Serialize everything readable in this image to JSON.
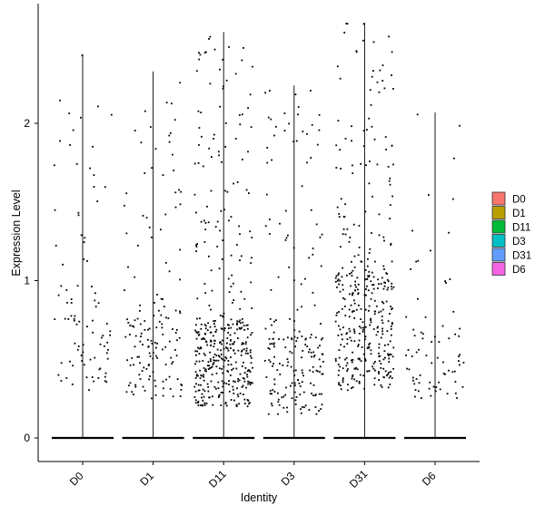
{
  "chart_data": {
    "type": "violin-jitter",
    "title": "",
    "xlabel": "Identity",
    "ylabel": "Expression Level",
    "categories": [
      "D0",
      "D1",
      "D11",
      "D3",
      "D31",
      "D6"
    ],
    "ylim": [
      -0.15,
      2.7
    ],
    "yticks": [
      0,
      1,
      2
    ],
    "grid": false,
    "legend_position": "right",
    "legend": [
      {
        "label": "D0",
        "color": "#F8766D"
      },
      {
        "label": "D1",
        "color": "#B79F00"
      },
      {
        "label": "D11",
        "color": "#00BA38"
      },
      {
        "label": "D3",
        "color": "#00BFC4"
      },
      {
        "label": "D31",
        "color": "#619CFF"
      },
      {
        "label": "D6",
        "color": "#F564E3"
      }
    ],
    "series": [
      {
        "category": "D0",
        "max": 2.44,
        "nonzero_points": 90,
        "dense_low": [
          0.3,
          0.95
        ]
      },
      {
        "category": "D1",
        "max": 2.33,
        "nonzero_points": 150,
        "dense_low": [
          0.25,
          0.8
        ]
      },
      {
        "category": "D11",
        "max": 2.58,
        "nonzero_points": 420,
        "dense_low": [
          0.2,
          0.75
        ]
      },
      {
        "category": "D3",
        "max": 2.24,
        "nonzero_points": 200,
        "dense_low": [
          0.15,
          0.65
        ]
      },
      {
        "category": "D31",
        "max": 2.64,
        "nonzero_points": 380,
        "dense_low": [
          0.3,
          1.05
        ]
      },
      {
        "category": "D6",
        "max": 2.07,
        "nonzero_points": 75,
        "dense_low": [
          0.25,
          0.7
        ]
      }
    ],
    "zero_line_value": 0
  }
}
